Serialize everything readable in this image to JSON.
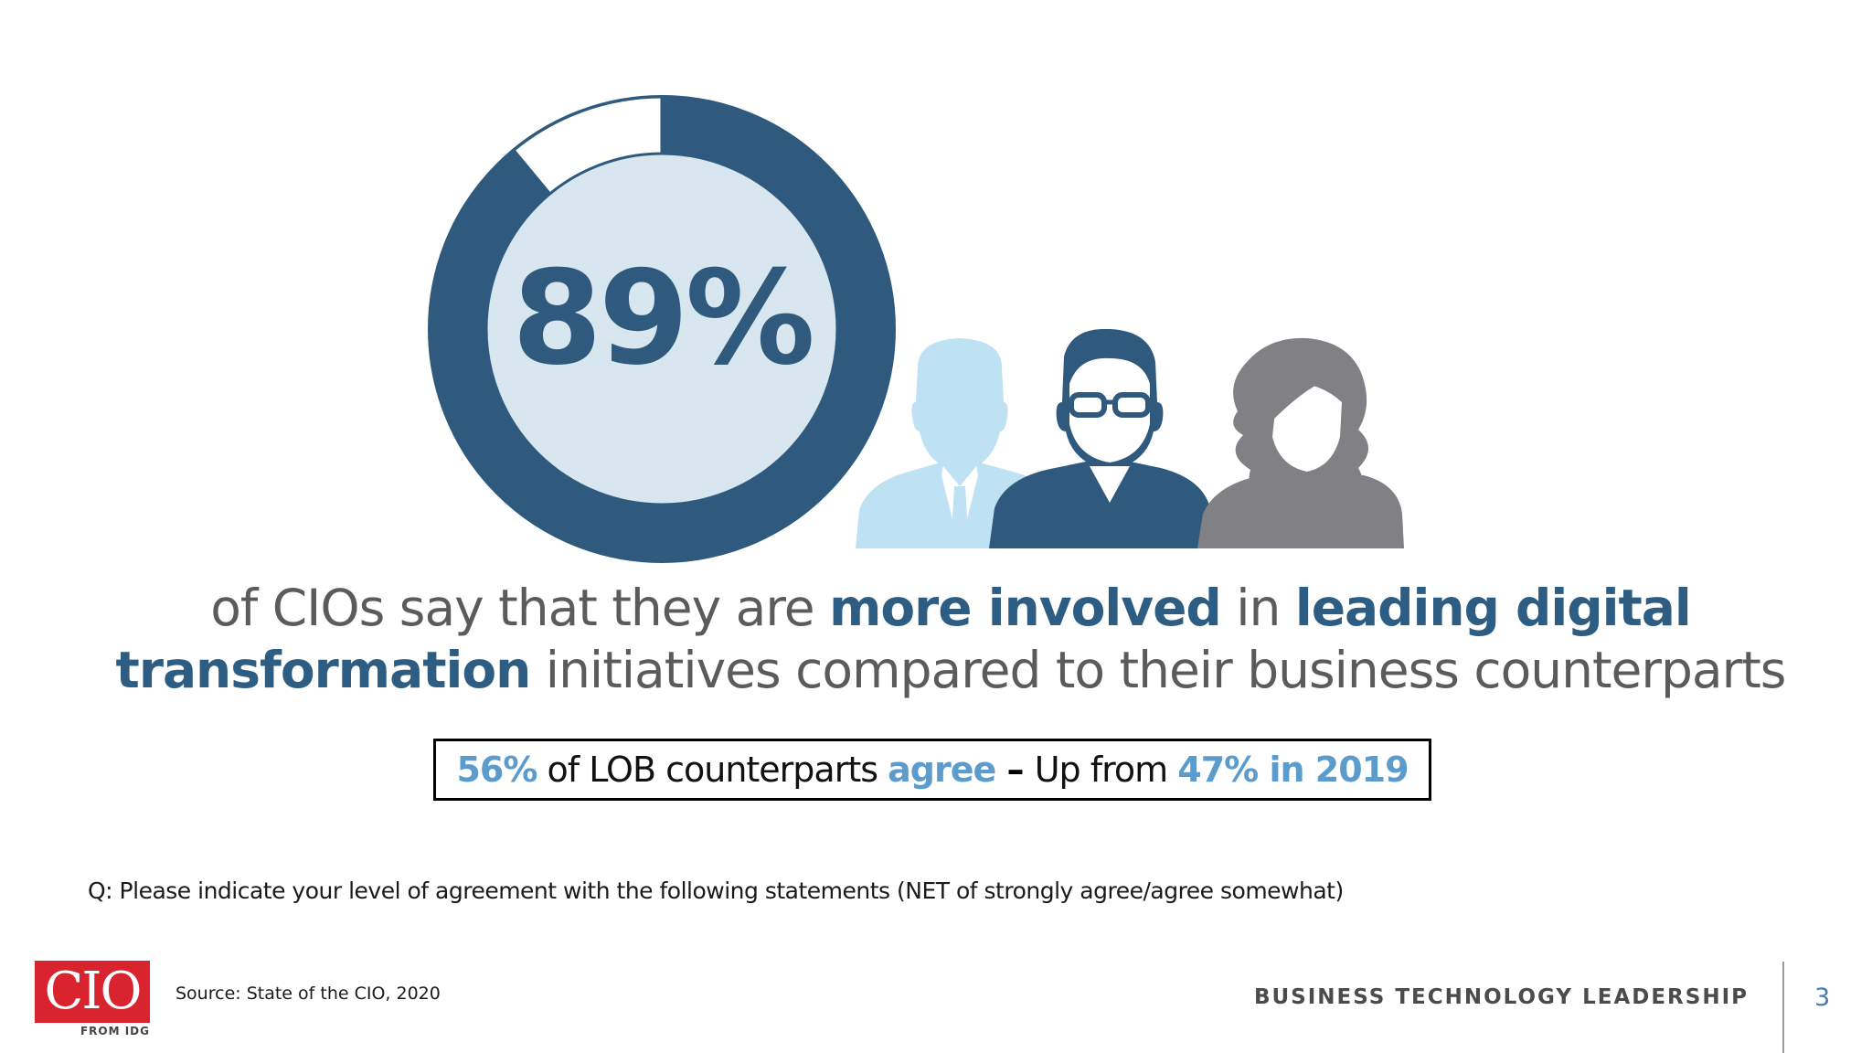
{
  "chart_data": {
    "type": "pie",
    "values": [
      89,
      11
    ],
    "value_label": "89%",
    "colors": {
      "filled": "#2f5a7e",
      "remaining": "#ffffff",
      "inner": "#d8e6ef"
    }
  },
  "headline": {
    "line1_a": "of CIOs say that they are ",
    "line1_b": "more involved",
    "line1_c": " in ",
    "line1_d": "leading digital",
    "line2_a": "transformation",
    "line2_b": " initiatives compared to their business counterparts"
  },
  "stat_box": {
    "pct": "56%",
    "text1": " of LOB counterparts ",
    "agree": "agree",
    "dash": " – ",
    "text2": "Up from ",
    "prev": "47% in 2019"
  },
  "question": "Q: Please indicate your level of agreement with the following statements (NET of strongly agree/agree somewhat)",
  "footer": {
    "logo_text": "CIO",
    "logo_sub": "FROM IDG",
    "source": "Source: State of the CIO, 2020",
    "tagline": "BUSINESS TECHNOLOGY LEADERSHIP",
    "page_number": "3"
  },
  "people_icons": [
    "man-light-blue-icon",
    "man-glasses-icon",
    "woman-gray-icon"
  ]
}
